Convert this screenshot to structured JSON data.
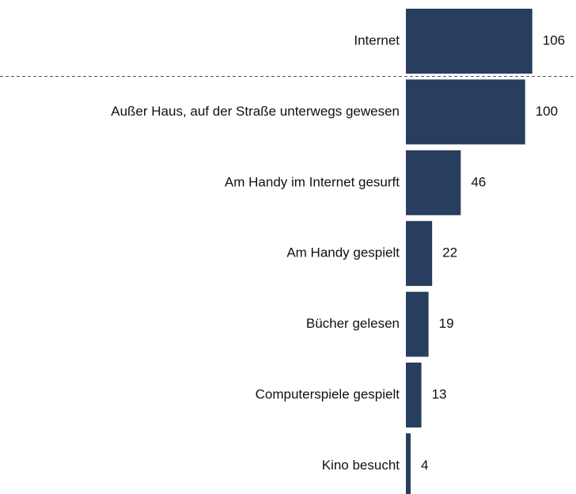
{
  "chart_data": {
    "type": "bar",
    "orientation": "horizontal",
    "categories": [
      "Internet",
      "Außer Haus, auf der Straße unterwegs gewesen",
      "Am Handy im Internet gesurft",
      "Am Handy gespielt",
      "Bücher gelesen",
      "Computerspiele gespielt",
      "Kino besucht"
    ],
    "values": [
      106,
      100,
      46,
      22,
      19,
      13,
      4
    ],
    "color": "#283e5e",
    "xlim": [
      0,
      140
    ]
  }
}
